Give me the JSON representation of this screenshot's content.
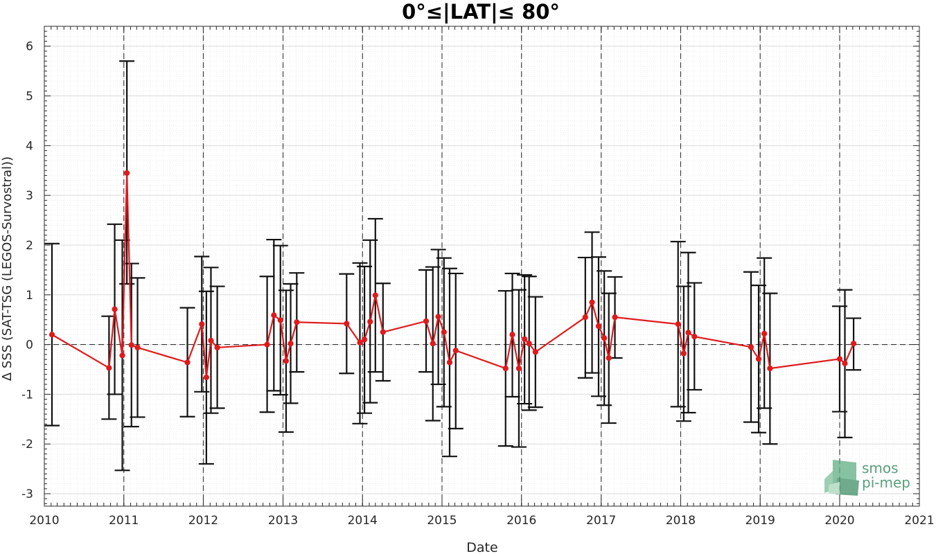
{
  "chart_data": {
    "type": "line",
    "title": "0°≤|LAT|≤ 80°",
    "xlabel": "Date",
    "ylabel": "Δ SSS (SAT-TSG (LEGOS-Survostral))",
    "xlim": [
      "2010-01-01",
      "2021-01-01"
    ],
    "ylim": [
      -3.25,
      6.4
    ],
    "x_tick_labels": [
      "2010",
      "2011",
      "2012",
      "2013",
      "2014",
      "2015",
      "2016",
      "2017",
      "2018",
      "2019",
      "2020",
      "2021"
    ],
    "y_tick_labels": [
      "-3",
      "-2",
      "-1",
      "0",
      "1",
      "2",
      "3",
      "4",
      "5",
      "6"
    ],
    "grid": true,
    "zero_line": true,
    "year_lines": [
      "2011",
      "2012",
      "2013",
      "2014",
      "2015",
      "2016",
      "2017",
      "2018",
      "2019",
      "2020"
    ],
    "series": [
      {
        "color": "#e0191b",
        "points": [
          {
            "x": "2010-02-05",
            "y": 0.2,
            "err_lo": -1.63,
            "err_hi": 2.03
          },
          {
            "x": "2010-10-25",
            "y": -0.47,
            "err_lo": -1.5,
            "err_hi": 0.57
          },
          {
            "x": "2010-11-20",
            "y": 0.71,
            "err_lo": -1.0,
            "err_hi": 2.42
          },
          {
            "x": "2010-12-25",
            "y": -0.22,
            "err_lo": -2.53,
            "err_hi": 2.1
          },
          {
            "x": "2011-01-15",
            "y": 3.45,
            "err_lo": 1.22,
            "err_hi": 5.7
          },
          {
            "x": "2011-02-05",
            "y": -0.01,
            "err_lo": -1.65,
            "err_hi": 1.63
          },
          {
            "x": "2011-03-05",
            "y": -0.06,
            "err_lo": -1.46,
            "err_hi": 1.34
          },
          {
            "x": "2011-10-20",
            "y": -0.36,
            "err_lo": -1.45,
            "err_hi": 0.74
          },
          {
            "x": "2011-12-25",
            "y": 0.41,
            "err_lo": -0.95,
            "err_hi": 1.77
          },
          {
            "x": "2012-01-15",
            "y": -0.66,
            "err_lo": -2.4,
            "err_hi": 1.07
          },
          {
            "x": "2012-02-05",
            "y": 0.08,
            "err_lo": -1.38,
            "err_hi": 1.55
          },
          {
            "x": "2012-03-05",
            "y": -0.06,
            "err_lo": -1.28,
            "err_hi": 1.17
          },
          {
            "x": "2012-10-20",
            "y": 0.0,
            "err_lo": -1.36,
            "err_hi": 1.37
          },
          {
            "x": "2012-11-20",
            "y": 0.59,
            "err_lo": -0.93,
            "err_hi": 2.11
          },
          {
            "x": "2012-12-20",
            "y": 0.49,
            "err_lo": -1.01,
            "err_hi": 1.99
          },
          {
            "x": "2013-01-15",
            "y": -0.33,
            "err_lo": -1.76,
            "err_hi": 1.09
          },
          {
            "x": "2013-02-05",
            "y": 0.02,
            "err_lo": -1.18,
            "err_hi": 1.22
          },
          {
            "x": "2013-03-05",
            "y": 0.45,
            "err_lo": -0.55,
            "err_hi": 1.44
          },
          {
            "x": "2013-10-20",
            "y": 0.42,
            "err_lo": -0.58,
            "err_hi": 1.42
          },
          {
            "x": "2013-12-20",
            "y": 0.04,
            "err_lo": -1.59,
            "err_hi": 1.64
          },
          {
            "x": "2014-01-10",
            "y": 0.1,
            "err_lo": -1.38,
            "err_hi": 1.57
          },
          {
            "x": "2014-02-05",
            "y": 0.46,
            "err_lo": -1.17,
            "err_hi": 2.1
          },
          {
            "x": "2014-03-01",
            "y": 0.99,
            "err_lo": -0.55,
            "err_hi": 2.53
          },
          {
            "x": "2014-04-05",
            "y": 0.25,
            "err_lo": -0.73,
            "err_hi": 1.23
          },
          {
            "x": "2014-10-20",
            "y": 0.47,
            "err_lo": -0.55,
            "err_hi": 1.5
          },
          {
            "x": "2014-11-20",
            "y": 0.02,
            "err_lo": -1.53,
            "err_hi": 1.56
          },
          {
            "x": "2014-12-15",
            "y": 0.56,
            "err_lo": -0.8,
            "err_hi": 1.91
          },
          {
            "x": "2015-01-10",
            "y": 0.25,
            "err_lo": -1.25,
            "err_hi": 1.74
          },
          {
            "x": "2015-02-05",
            "y": -0.36,
            "err_lo": -2.25,
            "err_hi": 1.53
          },
          {
            "x": "2015-03-05",
            "y": -0.12,
            "err_lo": -1.69,
            "err_hi": 1.43
          },
          {
            "x": "2015-10-20",
            "y": -0.48,
            "err_lo": -2.04,
            "err_hi": 1.08
          },
          {
            "x": "2015-11-20",
            "y": 0.2,
            "err_lo": -1.05,
            "err_hi": 1.43
          },
          {
            "x": "2015-12-20",
            "y": -0.48,
            "err_lo": -2.06,
            "err_hi": 1.1
          },
          {
            "x": "2016-01-15",
            "y": 0.11,
            "err_lo": -1.19,
            "err_hi": 1.4
          },
          {
            "x": "2016-02-05",
            "y": 0.02,
            "err_lo": -1.32,
            "err_hi": 1.37
          },
          {
            "x": "2016-03-05",
            "y": -0.15,
            "err_lo": -1.26,
            "err_hi": 0.96
          },
          {
            "x": "2016-10-20",
            "y": 0.55,
            "err_lo": -0.67,
            "err_hi": 1.75
          },
          {
            "x": "2016-11-20",
            "y": 0.85,
            "err_lo": -0.57,
            "err_hi": 2.26
          },
          {
            "x": "2016-12-20",
            "y": 0.37,
            "err_lo": -1.04,
            "err_hi": 1.76
          },
          {
            "x": "2017-01-15",
            "y": 0.13,
            "err_lo": -1.22,
            "err_hi": 1.48
          },
          {
            "x": "2017-02-05",
            "y": -0.27,
            "err_lo": -1.58,
            "err_hi": 1.03
          },
          {
            "x": "2017-03-05",
            "y": 0.55,
            "err_lo": -0.27,
            "err_hi": 1.36
          },
          {
            "x": "2017-12-20",
            "y": 0.41,
            "err_lo": -1.25,
            "err_hi": 2.07
          },
          {
            "x": "2018-01-15",
            "y": -0.18,
            "err_lo": -1.54,
            "err_hi": 1.17
          },
          {
            "x": "2018-02-05",
            "y": 0.24,
            "err_lo": -1.37,
            "err_hi": 1.85
          },
          {
            "x": "2018-03-05",
            "y": 0.16,
            "err_lo": -0.91,
            "err_hi": 1.24
          },
          {
            "x": "2018-11-20",
            "y": -0.05,
            "err_lo": -1.56,
            "err_hi": 1.46
          },
          {
            "x": "2018-12-25",
            "y": -0.29,
            "err_lo": -1.77,
            "err_hi": 1.19
          },
          {
            "x": "2019-01-20",
            "y": 0.22,
            "err_lo": -1.28,
            "err_hi": 1.74
          },
          {
            "x": "2019-02-15",
            "y": -0.48,
            "err_lo": -2.0,
            "err_hi": 1.03
          },
          {
            "x": "2020-01-01",
            "y": -0.29,
            "err_lo": -1.35,
            "err_hi": 0.77
          },
          {
            "x": "2020-01-25",
            "y": -0.38,
            "err_lo": -1.87,
            "err_hi": 1.1
          },
          {
            "x": "2020-03-05",
            "y": 0.02,
            "err_lo": -0.51,
            "err_hi": 0.53
          }
        ]
      }
    ]
  },
  "logo": {
    "line1": "smos",
    "line2": "pi-mep",
    "color": "#5a9e7a"
  }
}
